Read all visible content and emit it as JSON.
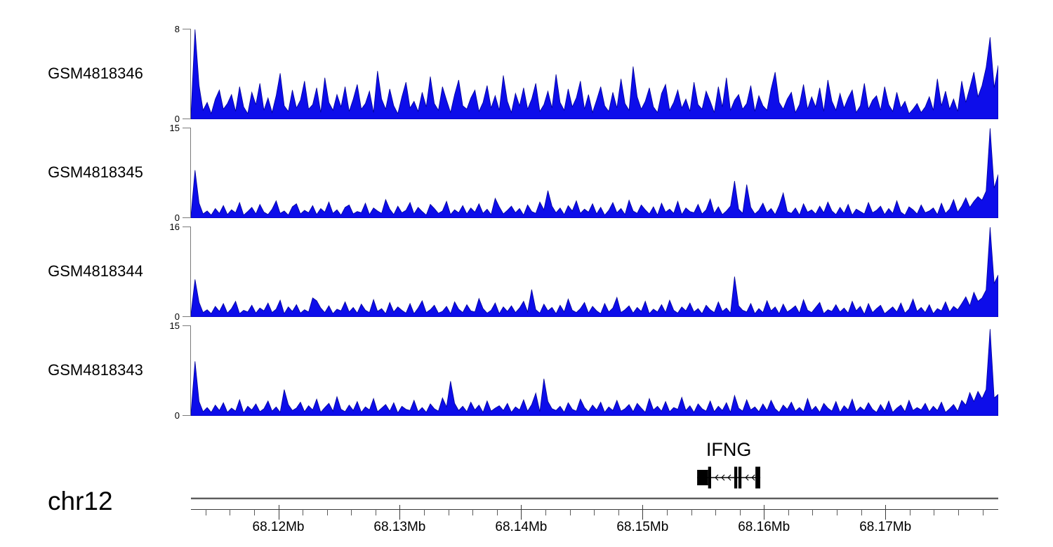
{
  "signal_color": "#0d0dea",
  "signal_stroke": "#000099",
  "chart_data": {
    "type": "area",
    "title": "",
    "subtitle": "",
    "xlabel": "",
    "ylabel": "",
    "grid": false,
    "legend": "none",
    "x_domain_mb": [
      68.1128,
      68.1793
    ],
    "x_axis": {
      "chromosome": "chr12",
      "unit": "Mb",
      "major_ticks_mb": [
        68.12,
        68.13,
        68.14,
        68.15,
        68.16,
        68.17
      ],
      "major_tick_labels": [
        "68.12Mb",
        "68.13Mb",
        "68.14Mb",
        "68.15Mb",
        "68.16Mb",
        "68.17Mb"
      ],
      "minor_tick_interval_mb": 0.002
    },
    "gene_annotation": {
      "name": "IFNG",
      "strand": "-",
      "span_mb": [
        68.1545,
        68.1597
      ],
      "exons": [
        {
          "start_mb": 68.1545,
          "end_mb": 68.1554,
          "height": "short"
        },
        {
          "start_mb": 68.1554,
          "end_mb": 68.15565,
          "height": "tall"
        },
        {
          "start_mb": 68.15755,
          "end_mb": 68.1578,
          "height": "tall"
        },
        {
          "start_mb": 68.1579,
          "end_mb": 68.15815,
          "height": "tall"
        },
        {
          "start_mb": 68.1593,
          "end_mb": 68.1597,
          "height": "tall"
        }
      ]
    },
    "series": [
      {
        "name": "GSM4818346",
        "ylim": [
          0,
          8
        ],
        "y_axis_labels": [
          "0",
          "8"
        ],
        "values": [
          0.4,
          8.0,
          3.0,
          0.8,
          1.5,
          0.5,
          1.8,
          2.6,
          0.9,
          1.4,
          2.2,
          0.7,
          2.9,
          1.1,
          0.5,
          2.4,
          1.3,
          3.2,
          0.8,
          1.9,
          0.6,
          2.1,
          4.1,
          1.2,
          0.7,
          2.6,
          1.0,
          1.7,
          3.4,
          0.9,
          1.3,
          2.8,
          0.6,
          3.7,
          1.5,
          0.8,
          2.2,
          1.1,
          2.9,
          0.7,
          1.8,
          3.1,
          0.9,
          1.4,
          2.5,
          0.6,
          4.3,
          1.8,
          0.9,
          2.7,
          1.2,
          0.5,
          2.0,
          3.3,
          1.0,
          1.6,
          0.7,
          2.4,
          1.1,
          3.8,
          1.4,
          0.8,
          2.9,
          1.7,
          0.6,
          2.2,
          3.5,
          1.2,
          0.9,
          1.9,
          2.6,
          0.7,
          1.5,
          3.0,
          1.0,
          2.1,
          0.8,
          3.9,
          1.6,
          0.6,
          2.3,
          1.2,
          2.8,
          0.9,
          1.8,
          3.2,
          0.7,
          1.3,
          2.5,
          1.0,
          4.0,
          1.5,
          0.8,
          2.7,
          1.1,
          1.9,
          3.4,
          0.9,
          2.2,
          0.6,
          1.7,
          2.9,
          1.2,
          0.7,
          2.4,
          1.0,
          3.6,
          1.4,
          0.8,
          4.7,
          2.0,
          0.9,
          1.6,
          2.8,
          1.1,
          0.6,
          2.3,
          3.1,
          0.8,
          1.5,
          2.6,
          1.0,
          1.8,
          0.7,
          3.3,
          1.3,
          0.9,
          2.5,
          1.6,
          0.6,
          2.9,
          1.1,
          3.7,
          0.8,
          1.7,
          2.2,
          0.9,
          1.4,
          3.0,
          0.7,
          2.1,
          1.2,
          0.8,
          2.7,
          4.2,
          1.5,
          0.9,
          1.8,
          2.4,
          0.6,
          1.3,
          3.1,
          0.9,
          2.0,
          1.1,
          2.8,
          0.7,
          3.5,
          1.6,
          0.8,
          2.3,
          1.0,
          1.9,
          2.6,
          0.6,
          1.2,
          3.2,
          0.9,
          1.7,
          2.1,
          0.8,
          2.9,
          1.3,
          0.7,
          2.4,
          1.0,
          1.6,
          0.5,
          0.9,
          1.4,
          0.6,
          1.1,
          2.0,
          0.8,
          3.6,
          1.2,
          2.5,
          0.9,
          1.8,
          0.7,
          3.4,
          1.5,
          2.8,
          4.2,
          2.0,
          3.0,
          4.6,
          7.3,
          2.8,
          4.8
        ]
      },
      {
        "name": "GSM4818345",
        "ylim": [
          0,
          15
        ],
        "y_axis_labels": [
          "0",
          "15"
        ],
        "values": [
          0.4,
          8.0,
          2.5,
          0.7,
          1.2,
          0.5,
          1.6,
          0.8,
          2.1,
          0.6,
          1.4,
          0.9,
          2.6,
          0.5,
          1.1,
          1.8,
          0.7,
          2.3,
          1.0,
          0.6,
          1.5,
          2.9,
          0.8,
          1.2,
          0.5,
          1.9,
          2.4,
          0.7,
          1.3,
          0.9,
          2.1,
          0.6,
          1.6,
          1.0,
          2.7,
          0.8,
          1.4,
          0.5,
          1.8,
          2.2,
          0.7,
          1.1,
          0.9,
          2.5,
          0.6,
          1.7,
          1.2,
          0.8,
          3.1,
          1.5,
          0.6,
          2.0,
          0.9,
          1.3,
          2.6,
          0.7,
          1.8,
          1.1,
          0.5,
          2.3,
          1.6,
          0.8,
          1.2,
          2.8,
          0.6,
          1.4,
          0.9,
          2.1,
          0.7,
          1.7,
          1.0,
          2.4,
          0.8,
          1.5,
          0.6,
          3.3,
          1.9,
          0.7,
          1.3,
          2.0,
          0.9,
          1.6,
          0.5,
          2.2,
          1.1,
          0.8,
          2.7,
          1.4,
          4.6,
          2.0,
          0.9,
          1.7,
          0.6,
          2.1,
          1.2,
          2.9,
          0.8,
          1.5,
          1.0,
          2.4,
          0.7,
          1.8,
          0.5,
          1.3,
          2.6,
          0.9,
          1.6,
          0.6,
          3.0,
          1.2,
          0.8,
          2.2,
          1.4,
          0.7,
          1.9,
          0.5,
          2.5,
          1.0,
          1.5,
          0.8,
          2.8,
          0.6,
          1.7,
          1.1,
          0.9,
          2.3,
          0.7,
          1.4,
          3.2,
          0.8,
          1.9,
          0.6,
          1.2,
          2.0,
          6.2,
          1.5,
          0.8,
          5.6,
          1.8,
          0.7,
          1.3,
          2.5,
          0.9,
          1.6,
          0.6,
          2.1,
          4.2,
          1.1,
          0.8,
          1.7,
          0.5,
          2.4,
          1.0,
          1.4,
          0.7,
          2.0,
          0.9,
          2.7,
          1.2,
          0.6,
          1.8,
          0.8,
          2.3,
          0.5,
          1.5,
          1.1,
          0.7,
          2.6,
          0.9,
          1.3,
          2.0,
          0.6,
          1.6,
          0.8,
          2.9,
          1.0,
          0.5,
          1.9,
          1.4,
          0.7,
          2.2,
          0.9,
          1.2,
          1.7,
          0.6,
          2.5,
          0.8,
          1.5,
          3.1,
          1.0,
          2.0,
          3.4,
          1.8,
          2.8,
          3.6,
          3.0,
          4.5,
          15.0,
          5.0,
          7.3
        ]
      },
      {
        "name": "GSM4818344",
        "ylim": [
          0,
          16
        ],
        "y_axis_labels": [
          "0",
          "16"
        ],
        "values": [
          0.5,
          6.7,
          2.6,
          0.8,
          1.3,
          0.6,
          1.9,
          1.0,
          2.4,
          0.7,
          1.5,
          2.8,
          0.6,
          1.2,
          0.9,
          2.1,
          0.7,
          1.6,
          1.1,
          2.5,
          0.8,
          1.4,
          3.0,
          0.6,
          1.8,
          1.0,
          2.2,
          0.7,
          1.3,
          0.9,
          3.4,
          2.9,
          1.6,
          0.8,
          2.0,
          0.6,
          1.4,
          1.1,
          2.7,
          0.9,
          1.7,
          0.7,
          2.3,
          1.2,
          0.8,
          3.1,
          1.0,
          1.5,
          0.6,
          2.6,
          0.9,
          1.8,
          1.2,
          0.7,
          2.4,
          0.6,
          1.6,
          2.9,
          0.8,
          1.3,
          2.1,
          0.7,
          1.0,
          1.9,
          0.6,
          2.7,
          1.4,
          0.8,
          2.2,
          1.1,
          0.9,
          3.3,
          1.5,
          0.7,
          1.2,
          2.5,
          0.6,
          1.8,
          1.0,
          2.0,
          0.8,
          1.6,
          2.8,
          0.9,
          4.9,
          1.3,
          0.7,
          2.3,
          1.1,
          1.7,
          0.6,
          2.1,
          0.9,
          3.2,
          1.2,
          0.8,
          1.5,
          2.6,
          0.7,
          1.9,
          1.1,
          0.6,
          2.4,
          0.9,
          1.6,
          3.5,
          0.8,
          1.3,
          2.0,
          0.7,
          1.7,
          1.0,
          2.8,
          0.6,
          1.4,
          0.9,
          2.2,
          0.8,
          3.0,
          1.2,
          0.7,
          1.8,
          1.1,
          2.5,
          0.9,
          1.5,
          0.6,
          2.1,
          1.3,
          0.8,
          2.7,
          1.0,
          1.6,
          0.7,
          7.2,
          2.0,
          1.2,
          0.9,
          2.4,
          0.6,
          1.5,
          0.8,
          2.9,
          1.1,
          1.8,
          0.6,
          2.3,
          0.9,
          1.4,
          2.0,
          0.7,
          3.1,
          1.2,
          0.8,
          1.7,
          2.6,
          0.6,
          1.3,
          1.0,
          2.2,
          0.9,
          1.6,
          0.7,
          2.8,
          1.1,
          1.9,
          0.5,
          2.4,
          0.8,
          1.5,
          2.1,
          0.6,
          1.2,
          1.8,
          0.9,
          2.5,
          0.7,
          1.4,
          3.2,
          1.0,
          1.7,
          0.8,
          2.2,
          0.6,
          1.5,
          1.1,
          2.7,
          0.9,
          1.9,
          1.3,
          2.4,
          3.6,
          2.0,
          4.4,
          2.8,
          3.4,
          4.8,
          16.0,
          6.0,
          7.5
        ]
      },
      {
        "name": "GSM4818343",
        "ylim": [
          0,
          15
        ],
        "y_axis_labels": [
          "0",
          "15"
        ],
        "values": [
          0.4,
          9.1,
          2.4,
          0.7,
          1.4,
          0.6,
          1.8,
          0.9,
          2.2,
          0.6,
          1.3,
          0.8,
          2.7,
          0.5,
          1.6,
          1.0,
          2.0,
          0.7,
          1.2,
          2.5,
          0.8,
          1.5,
          0.6,
          4.4,
          1.9,
          0.9,
          1.3,
          2.3,
          0.7,
          1.7,
          1.0,
          2.8,
          0.6,
          1.4,
          2.1,
          0.8,
          3.2,
          1.1,
          0.7,
          1.8,
          0.9,
          2.4,
          0.6,
          1.5,
          1.0,
          2.9,
          0.7,
          1.3,
          1.9,
          0.8,
          2.2,
          0.5,
          1.6,
          1.1,
          0.9,
          2.6,
          0.7,
          1.4,
          0.6,
          2.0,
          1.2,
          0.8,
          3.0,
          1.5,
          5.8,
          2.1,
          0.9,
          1.6,
          0.7,
          2.3,
          1.0,
          1.8,
          0.6,
          2.5,
          0.8,
          1.3,
          1.7,
          0.9,
          2.1,
          0.6,
          1.5,
          1.0,
          2.7,
          0.8,
          1.9,
          3.8,
          0.7,
          6.2,
          2.4,
          1.2,
          0.9,
          1.6,
          0.6,
          2.2,
          1.1,
          0.8,
          2.8,
          1.4,
          0.7,
          1.8,
          1.0,
          2.3,
          0.6,
          1.5,
          0.9,
          2.6,
          0.8,
          1.2,
          1.9,
          0.7,
          2.1,
          1.3,
          0.6,
          2.9,
          1.0,
          1.6,
          0.8,
          2.4,
          0.7,
          1.4,
          1.1,
          3.1,
          0.9,
          1.7,
          0.6,
          2.0,
          1.2,
          0.8,
          2.5,
          0.7,
          1.6,
          0.9,
          2.2,
          0.6,
          3.4,
          1.3,
          0.8,
          2.7,
          1.0,
          1.5,
          0.7,
          2.0,
          0.9,
          2.6,
          1.2,
          0.6,
          1.8,
          1.1,
          2.3,
          0.8,
          1.4,
          0.7,
          2.9,
          0.9,
          1.6,
          0.6,
          2.1,
          1.3,
          0.8,
          2.4,
          0.6,
          1.7,
          1.0,
          2.8,
          0.7,
          1.5,
          0.9,
          2.2,
          1.1,
          0.6,
          1.9,
          0.8,
          2.5,
          0.6,
          1.3,
          1.8,
          0.7,
          2.6,
          0.9,
          1.4,
          1.0,
          2.1,
          0.7,
          1.6,
          0.9,
          2.3,
          0.6,
          1.2,
          1.9,
          0.8,
          2.6,
          1.8,
          3.9,
          2.4,
          4.1,
          2.9,
          4.4,
          14.5,
          3.0,
          3.6
        ]
      }
    ]
  }
}
